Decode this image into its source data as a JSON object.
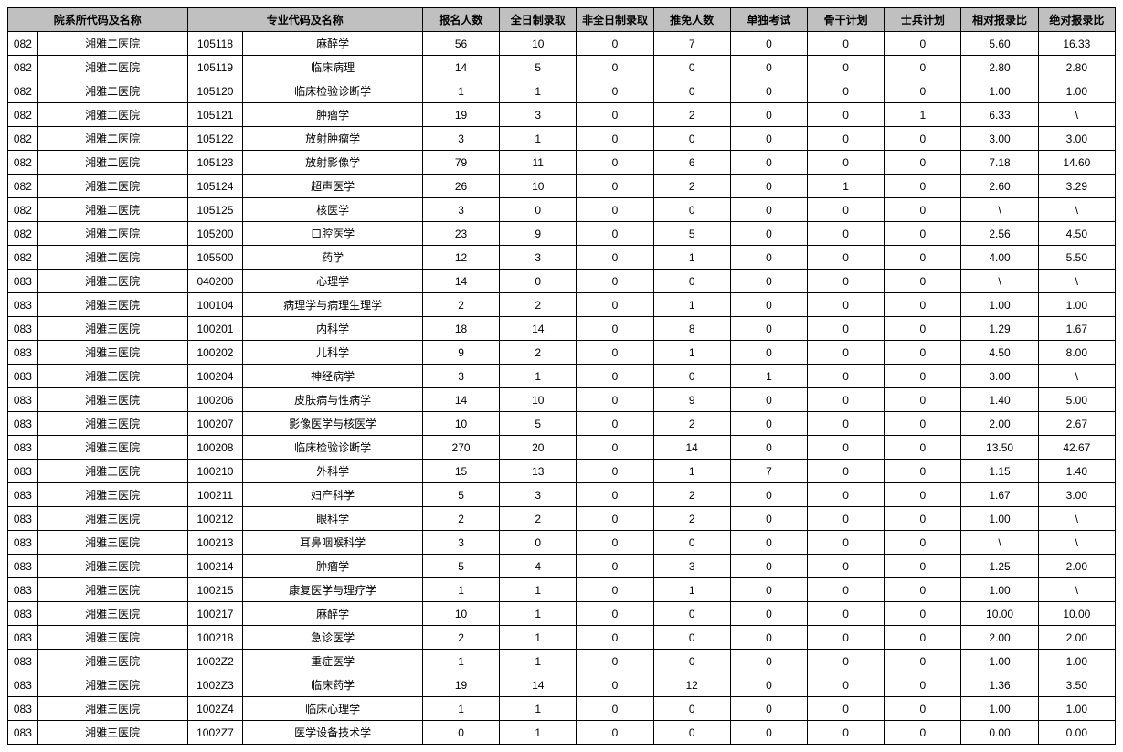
{
  "table": {
    "header_bg": "#c0c0c0",
    "border_color": "#000000",
    "font_size": 12,
    "columns": [
      {
        "label": "院系所代码及名称",
        "span": 2
      },
      {
        "label": "专业代码及名称",
        "span": 2
      },
      {
        "label": "报名人数",
        "span": 1
      },
      {
        "label": "全日制录取",
        "span": 1
      },
      {
        "label": "非全日制录取",
        "span": 1
      },
      {
        "label": "推免人数",
        "span": 1
      },
      {
        "label": "单独考试",
        "span": 1
      },
      {
        "label": "骨干计划",
        "span": 1
      },
      {
        "label": "士兵计划",
        "span": 1
      },
      {
        "label": "相对报录比",
        "span": 1
      },
      {
        "label": "绝对报录比",
        "span": 1
      }
    ],
    "rows": [
      [
        "082",
        "湘雅二医院",
        "105118",
        "麻醉学",
        "56",
        "10",
        "0",
        "7",
        "0",
        "0",
        "0",
        "5.60",
        "16.33"
      ],
      [
        "082",
        "湘雅二医院",
        "105119",
        "临床病理",
        "14",
        "5",
        "0",
        "0",
        "0",
        "0",
        "0",
        "2.80",
        "2.80"
      ],
      [
        "082",
        "湘雅二医院",
        "105120",
        "临床检验诊断学",
        "1",
        "1",
        "0",
        "0",
        "0",
        "0",
        "0",
        "1.00",
        "1.00"
      ],
      [
        "082",
        "湘雅二医院",
        "105121",
        "肿瘤学",
        "19",
        "3",
        "0",
        "2",
        "0",
        "0",
        "1",
        "6.33",
        "\\"
      ],
      [
        "082",
        "湘雅二医院",
        "105122",
        "放射肿瘤学",
        "3",
        "1",
        "0",
        "0",
        "0",
        "0",
        "0",
        "3.00",
        "3.00"
      ],
      [
        "082",
        "湘雅二医院",
        "105123",
        "放射影像学",
        "79",
        "11",
        "0",
        "6",
        "0",
        "0",
        "0",
        "7.18",
        "14.60"
      ],
      [
        "082",
        "湘雅二医院",
        "105124",
        "超声医学",
        "26",
        "10",
        "0",
        "2",
        "0",
        "1",
        "0",
        "2.60",
        "3.29"
      ],
      [
        "082",
        "湘雅二医院",
        "105125",
        "核医学",
        "3",
        "0",
        "0",
        "0",
        "0",
        "0",
        "0",
        "\\",
        "\\"
      ],
      [
        "082",
        "湘雅二医院",
        "105200",
        "口腔医学",
        "23",
        "9",
        "0",
        "5",
        "0",
        "0",
        "0",
        "2.56",
        "4.50"
      ],
      [
        "082",
        "湘雅二医院",
        "105500",
        "药学",
        "12",
        "3",
        "0",
        "1",
        "0",
        "0",
        "0",
        "4.00",
        "5.50"
      ],
      [
        "083",
        "湘雅三医院",
        "040200",
        "心理学",
        "14",
        "0",
        "0",
        "0",
        "0",
        "0",
        "0",
        "\\",
        "\\"
      ],
      [
        "083",
        "湘雅三医院",
        "100104",
        "病理学与病理生理学",
        "2",
        "2",
        "0",
        "1",
        "0",
        "0",
        "0",
        "1.00",
        "1.00"
      ],
      [
        "083",
        "湘雅三医院",
        "100201",
        "内科学",
        "18",
        "14",
        "0",
        "8",
        "0",
        "0",
        "0",
        "1.29",
        "1.67"
      ],
      [
        "083",
        "湘雅三医院",
        "100202",
        "儿科学",
        "9",
        "2",
        "0",
        "1",
        "0",
        "0",
        "0",
        "4.50",
        "8.00"
      ],
      [
        "083",
        "湘雅三医院",
        "100204",
        "神经病学",
        "3",
        "1",
        "0",
        "0",
        "1",
        "0",
        "0",
        "3.00",
        "\\"
      ],
      [
        "083",
        "湘雅三医院",
        "100206",
        "皮肤病与性病学",
        "14",
        "10",
        "0",
        "9",
        "0",
        "0",
        "0",
        "1.40",
        "5.00"
      ],
      [
        "083",
        "湘雅三医院",
        "100207",
        "影像医学与核医学",
        "10",
        "5",
        "0",
        "2",
        "0",
        "0",
        "0",
        "2.00",
        "2.67"
      ],
      [
        "083",
        "湘雅三医院",
        "100208",
        "临床检验诊断学",
        "270",
        "20",
        "0",
        "14",
        "0",
        "0",
        "0",
        "13.50",
        "42.67"
      ],
      [
        "083",
        "湘雅三医院",
        "100210",
        "外科学",
        "15",
        "13",
        "0",
        "1",
        "7",
        "0",
        "0",
        "1.15",
        "1.40"
      ],
      [
        "083",
        "湘雅三医院",
        "100211",
        "妇产科学",
        "5",
        "3",
        "0",
        "2",
        "0",
        "0",
        "0",
        "1.67",
        "3.00"
      ],
      [
        "083",
        "湘雅三医院",
        "100212",
        "眼科学",
        "2",
        "2",
        "0",
        "2",
        "0",
        "0",
        "0",
        "1.00",
        "\\"
      ],
      [
        "083",
        "湘雅三医院",
        "100213",
        "耳鼻咽喉科学",
        "3",
        "0",
        "0",
        "0",
        "0",
        "0",
        "0",
        "\\",
        "\\"
      ],
      [
        "083",
        "湘雅三医院",
        "100214",
        "肿瘤学",
        "5",
        "4",
        "0",
        "3",
        "0",
        "0",
        "0",
        "1.25",
        "2.00"
      ],
      [
        "083",
        "湘雅三医院",
        "100215",
        "康复医学与理疗学",
        "1",
        "1",
        "0",
        "1",
        "0",
        "0",
        "0",
        "1.00",
        "\\"
      ],
      [
        "083",
        "湘雅三医院",
        "100217",
        "麻醉学",
        "10",
        "1",
        "0",
        "0",
        "0",
        "0",
        "0",
        "10.00",
        "10.00"
      ],
      [
        "083",
        "湘雅三医院",
        "100218",
        "急诊医学",
        "2",
        "1",
        "0",
        "0",
        "0",
        "0",
        "0",
        "2.00",
        "2.00"
      ],
      [
        "083",
        "湘雅三医院",
        "1002Z2",
        "重症医学",
        "1",
        "1",
        "0",
        "0",
        "0",
        "0",
        "0",
        "1.00",
        "1.00"
      ],
      [
        "083",
        "湘雅三医院",
        "1002Z3",
        "临床药学",
        "19",
        "14",
        "0",
        "12",
        "0",
        "0",
        "0",
        "1.36",
        "3.50"
      ],
      [
        "083",
        "湘雅三医院",
        "1002Z4",
        "临床心理学",
        "1",
        "1",
        "0",
        "0",
        "0",
        "0",
        "0",
        "1.00",
        "1.00"
      ],
      [
        "083",
        "湘雅三医院",
        "1002Z7",
        "医学设备技术学",
        "0",
        "1",
        "0",
        "0",
        "0",
        "0",
        "0",
        "0.00",
        "0.00"
      ]
    ]
  }
}
